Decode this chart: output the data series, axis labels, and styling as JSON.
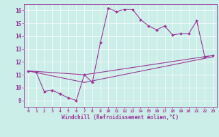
{
  "xlabel": "Windchill (Refroidissement éolien,°C)",
  "bg_color": "#cceee8",
  "line_color": "#993399",
  "grid_color": "#ffffff",
  "ylim": [
    8.5,
    16.5
  ],
  "xlim": [
    -0.5,
    23.5
  ],
  "yticks": [
    9,
    10,
    11,
    12,
    13,
    14,
    15,
    16
  ],
  "xticks": [
    0,
    1,
    2,
    3,
    4,
    5,
    6,
    7,
    8,
    9,
    10,
    11,
    12,
    13,
    14,
    15,
    16,
    17,
    18,
    19,
    20,
    21,
    22,
    23
  ],
  "line1": {
    "x": [
      0,
      1,
      2,
      3,
      4,
      5,
      6,
      7,
      8,
      9,
      10,
      11,
      12,
      13,
      14,
      15,
      16,
      17,
      18,
      19,
      20,
      21,
      22,
      23
    ],
    "y": [
      11.3,
      11.2,
      9.7,
      9.8,
      9.5,
      9.2,
      9.0,
      11.0,
      10.4,
      13.5,
      16.2,
      15.9,
      16.1,
      16.1,
      15.3,
      14.8,
      14.5,
      14.8,
      14.1,
      14.2,
      14.2,
      15.2,
      12.4,
      12.5
    ]
  },
  "line2": {
    "x": [
      0,
      7,
      23
    ],
    "y": [
      11.3,
      11.0,
      12.5
    ]
  },
  "line3": {
    "x": [
      0,
      7,
      23
    ],
    "y": [
      11.3,
      10.4,
      12.4
    ]
  }
}
